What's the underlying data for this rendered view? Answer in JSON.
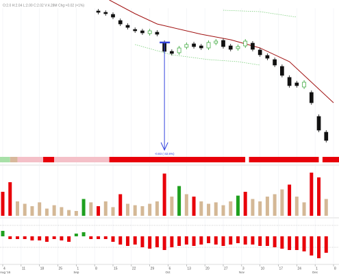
{
  "header": "O:2.0  H:2.04  L:2.00  C:2.02  V:4.28M  Chg:+0.02 (+1%)",
  "chart_data": [
    {
      "type": "candlestick",
      "xlim": [
        0,
        90
      ],
      "ylim": [
        0,
        215
      ],
      "xticks": [
        {
          "value": 0,
          "label": "4"
        },
        {
          "value": 5,
          "label": "11"
        },
        {
          "value": 10,
          "label": "18"
        },
        {
          "value": 15,
          "label": "25"
        },
        {
          "value": 20,
          "label": "1"
        },
        {
          "value": 25,
          "label": "8"
        },
        {
          "value": 30,
          "label": "15"
        },
        {
          "value": 35,
          "label": "22"
        },
        {
          "value": 40,
          "label": "29"
        },
        {
          "value": 45,
          "label": "6"
        },
        {
          "value": 50,
          "label": "13"
        },
        {
          "value": 55,
          "label": "20"
        },
        {
          "value": 60,
          "label": "27"
        },
        {
          "value": 65,
          "label": "3"
        },
        {
          "value": 70,
          "label": "10"
        },
        {
          "value": 75,
          "label": "17"
        },
        {
          "value": 80,
          "label": "24"
        },
        {
          "value": 85,
          "label": "1"
        },
        {
          "value": 90,
          "label": "8"
        }
      ],
      "month_labels": [
        {
          "value": 0,
          "label": "Aug '16"
        },
        {
          "value": 20,
          "label": "Sep"
        },
        {
          "value": 45,
          "label": "Oct"
        },
        {
          "value": 65,
          "label": "Nov"
        },
        {
          "value": 85,
          "label": "Dec"
        }
      ],
      "x": [
        26,
        28,
        30,
        32,
        34,
        36,
        38,
        40,
        42,
        44,
        46,
        48,
        50,
        52,
        54,
        56,
        58,
        60,
        62,
        64,
        66,
        68,
        70,
        72,
        74,
        76,
        78,
        80,
        82,
        84,
        86,
        88
      ],
      "open": [
        199,
        197,
        194,
        185,
        178,
        172,
        170,
        166,
        168,
        153,
        140,
        138,
        146,
        151,
        148,
        145,
        152,
        156,
        148,
        144,
        148,
        152,
        142,
        134,
        128,
        118,
        102,
        94,
        88,
        80,
        45,
        22
      ],
      "high": [
        202,
        200,
        197,
        188,
        181,
        175,
        173,
        173,
        171,
        156,
        143,
        148,
        153,
        154,
        151,
        156,
        158,
        159,
        151,
        150,
        158,
        155,
        145,
        137,
        131,
        121,
        105,
        97,
        98,
        83,
        48,
        25
      ],
      "low": [
        194,
        192,
        187,
        177,
        172,
        167,
        164,
        163,
        162,
        137,
        134,
        135,
        143,
        144,
        142,
        142,
        149,
        144,
        140,
        141,
        145,
        140,
        132,
        127,
        117,
        102,
        87,
        87,
        85,
        62,
        22,
        7
      ],
      "close": [
        197,
        195,
        190,
        180,
        175,
        170,
        167,
        170,
        165,
        140,
        137,
        145,
        150,
        147,
        145,
        153,
        155,
        147,
        143,
        147,
        155,
        143,
        135,
        130,
        120,
        105,
        90,
        90,
        95,
        65,
        25,
        10
      ],
      "up_color": "#2ca02c",
      "down_color": "#111111",
      "ma": {
        "color": "#a01010",
        "x": [
          29,
          36,
          42,
          46,
          54,
          62,
          70,
          78,
          84,
          90
        ],
        "values": [
          215,
          195,
          180,
          175,
          165,
          157,
          145,
          125,
          95,
          65
        ]
      },
      "bands": [
        {
          "color": "#7ccf7c",
          "x": [
            36,
            46,
            56,
            64,
            70
          ],
          "values": [
            150,
            135,
            128,
            125,
            120
          ]
        },
        {
          "color": "#7ccf7c",
          "x": [
            60,
            70,
            80
          ],
          "values": [
            200,
            198,
            190
          ]
        }
      ],
      "annotation": {
        "text": "-0.83 (-32.6%)",
        "x": 44,
        "from": 153,
        "color": "#3344dd"
      },
      "strip": {
        "colors": [
          "#a8e0a8",
          "#d8b89c",
          "#f4c0c8",
          "#e8000a",
          "#f4c0c8",
          "#e8000a",
          "#ffffff",
          "#e8000a",
          "#ffffff",
          "#e8000a"
        ],
        "ends": [
          2,
          4,
          11,
          14,
          29,
          66,
          67,
          86,
          87,
          90
        ]
      }
    },
    {
      "type": "bar",
      "ylim": [
        0,
        100
      ],
      "x": [
        0,
        2,
        4,
        6,
        8,
        10,
        12,
        14,
        16,
        18,
        20,
        22,
        24,
        26,
        28,
        30,
        32,
        34,
        36,
        38,
        40,
        42,
        44,
        46,
        48,
        50,
        52,
        54,
        56,
        58,
        60,
        62,
        64,
        66,
        68,
        70,
        72,
        74,
        76,
        78,
        80,
        82,
        84,
        86,
        88
      ],
      "values": [
        50,
        70,
        30,
        25,
        20,
        28,
        15,
        22,
        18,
        12,
        10,
        35,
        28,
        20,
        30,
        18,
        45,
        25,
        22,
        20,
        25,
        30,
        88,
        40,
        62,
        45,
        40,
        30,
        25,
        28,
        22,
        30,
        42,
        50,
        35,
        30,
        40,
        45,
        55,
        65,
        40,
        28,
        90,
        80,
        35
      ],
      "colors": [
        "#e8000a",
        "#e8000a",
        "#d4b896",
        "#d4b896",
        "#d4b896",
        "#d4b896",
        "#d4b896",
        "#d4b896",
        "#d4b896",
        "#d4b896",
        "#d4b896",
        "#1fa01f",
        "#d4b896",
        "#e8000a",
        "#d4b896",
        "#d4b896",
        "#e8000a",
        "#d4b896",
        "#d4b896",
        "#d4b896",
        "#d4b896",
        "#d4b896",
        "#e8000a",
        "#d4b896",
        "#1fa01f",
        "#d4b896",
        "#e8000a",
        "#d4b896",
        "#d4b896",
        "#d4b896",
        "#d4b896",
        "#d4b896",
        "#1fa01f",
        "#e8000a",
        "#d4b896",
        "#d4b896",
        "#d4b896",
        "#d4b896",
        "#d4b896",
        "#e8000a",
        "#d4b896",
        "#d4b896",
        "#e8000a",
        "#e8000a",
        "#d4b896"
      ]
    },
    {
      "type": "signed-bar",
      "ylim": [
        -10,
        5
      ],
      "grid_levels": [
        4,
        -4
      ],
      "pos_color": "#1fa01f",
      "neg_color": "#e8000a",
      "x": [
        0,
        2,
        4,
        6,
        8,
        10,
        12,
        14,
        16,
        18,
        20,
        22,
        24,
        26,
        28,
        30,
        32,
        34,
        36,
        38,
        40,
        42,
        44,
        46,
        48,
        50,
        52,
        54,
        56,
        58,
        60,
        62,
        64,
        66,
        68,
        70,
        72,
        74,
        76,
        78,
        80,
        82,
        84,
        86,
        88
      ],
      "values": [
        2,
        -1,
        -1,
        -1,
        -1.5,
        -1.5,
        -2,
        -1,
        -1.5,
        -2,
        1,
        1.5,
        -1,
        -1,
        -1,
        -2,
        -3,
        -3.5,
        -3,
        -4,
        -4.5,
        -4,
        -5,
        -4,
        -3.5,
        -3,
        -3.5,
        -3,
        -2.5,
        -3,
        -3.5,
        -3,
        -2.5,
        -3,
        -3,
        -3.5,
        -3.5,
        -4,
        -4.5,
        -5,
        -5,
        -5.5,
        -7,
        -8,
        -6
      ]
    }
  ]
}
